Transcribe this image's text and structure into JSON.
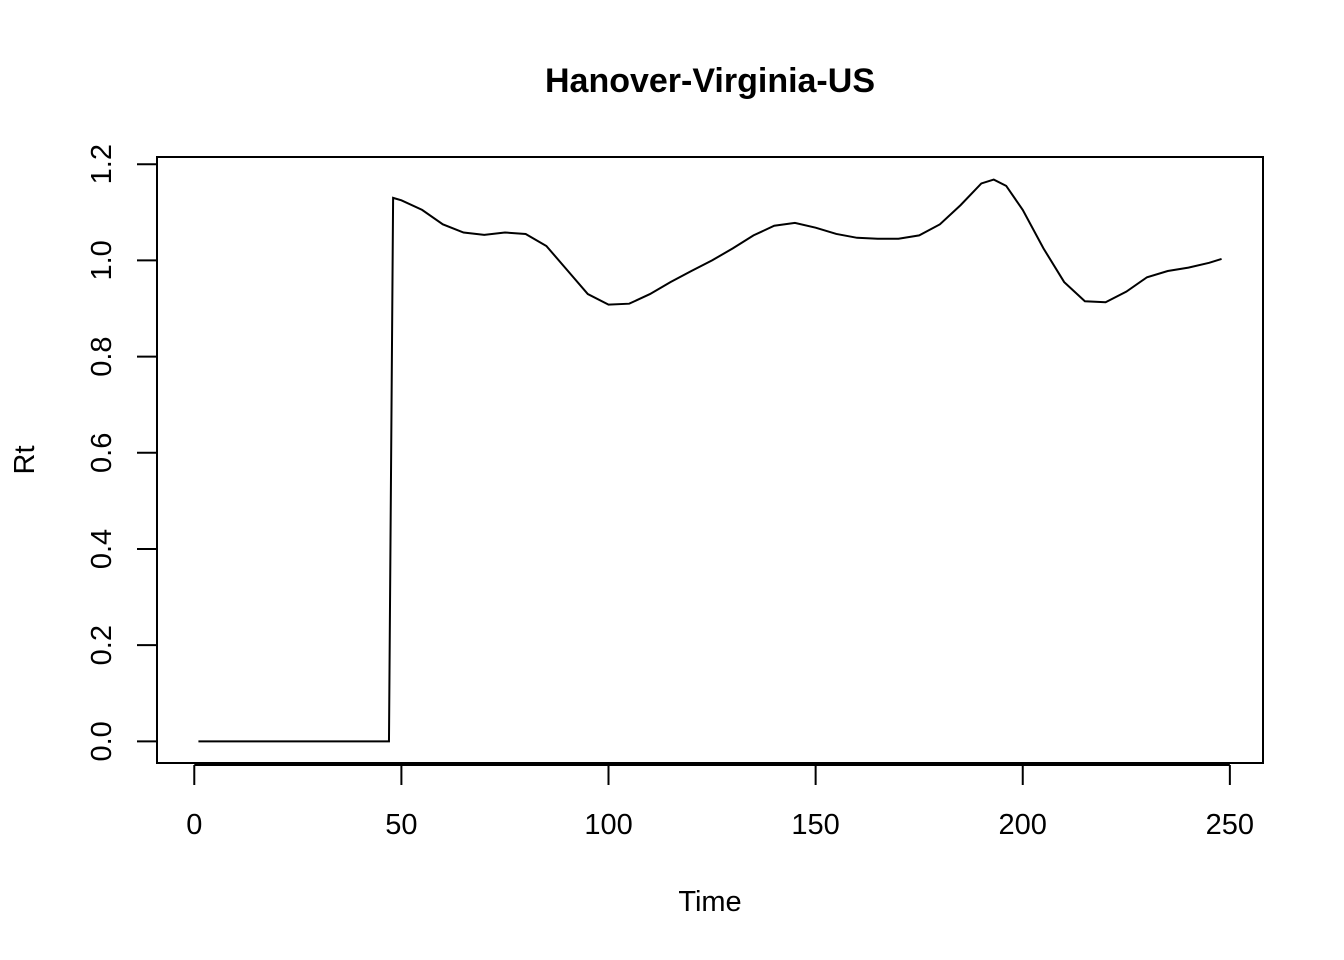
{
  "chart_data": {
    "type": "line",
    "title": "Hanover-Virginia-US",
    "xlabel": "Time",
    "ylabel": "Rt",
    "xlim": [
      -9,
      258
    ],
    "ylim": [
      -0.045,
      1.215
    ],
    "xticks": [
      0,
      50,
      100,
      150,
      200,
      250
    ],
    "yticks": [
      0.0,
      0.2,
      0.4,
      0.6,
      0.8,
      1.0,
      1.2
    ],
    "xtick_labels": [
      "0",
      "50",
      "100",
      "150",
      "200",
      "250"
    ],
    "ytick_labels": [
      "0.0",
      "0.2",
      "0.4",
      "0.6",
      "0.8",
      "1.0",
      "1.2"
    ],
    "grid": false,
    "legend": "none",
    "line_color": "#000000",
    "series": [
      {
        "x": [
          1,
          10,
          20,
          30,
          40,
          47,
          48,
          50,
          55,
          60,
          65,
          70,
          75,
          80,
          85,
          90,
          95,
          100,
          105,
          110,
          115,
          120,
          125,
          130,
          135,
          140,
          145,
          150,
          155,
          160,
          165,
          170,
          175,
          180,
          185,
          190,
          193,
          196,
          200,
          205,
          210,
          215,
          220,
          225,
          230,
          235,
          240,
          245,
          248
        ],
        "y": [
          0,
          0,
          0,
          0,
          0,
          0,
          1.13,
          1.125,
          1.105,
          1.075,
          1.058,
          1.053,
          1.058,
          1.055,
          1.03,
          0.98,
          0.93,
          0.908,
          0.91,
          0.93,
          0.955,
          0.978,
          1.0,
          1.025,
          1.052,
          1.072,
          1.078,
          1.068,
          1.055,
          1.047,
          1.045,
          1.045,
          1.052,
          1.075,
          1.115,
          1.16,
          1.168,
          1.155,
          1.105,
          1.025,
          0.955,
          0.915,
          0.913,
          0.935,
          0.965,
          0.978,
          0.985,
          0.995,
          1.003
        ]
      }
    ]
  }
}
